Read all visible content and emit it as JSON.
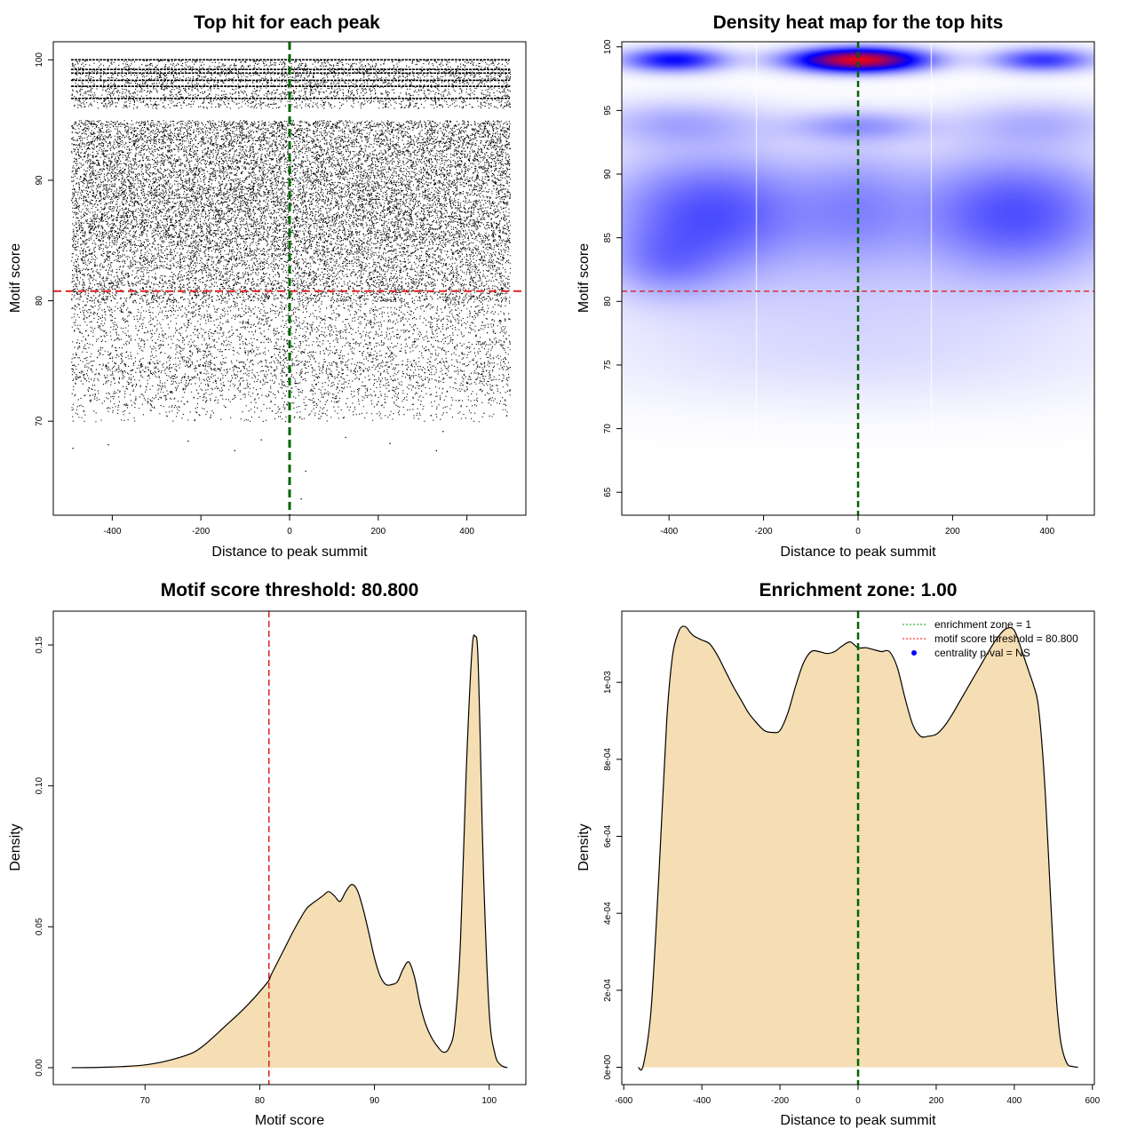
{
  "colors": {
    "green": "#006400",
    "red": "#dd2222",
    "fill": "#f5deb3",
    "heat_low": "#ffffff",
    "heat_mid": "#0000ff",
    "heat_high": "#ff0000"
  },
  "chart_data": [
    {
      "id": "scatter",
      "type": "scatter",
      "title": "Top hit for each peak",
      "xlabel": "Distance to peak summit",
      "ylabel": "Motif score",
      "xlim": [
        -533,
        533
      ],
      "ylim": [
        62.2,
        101.5
      ],
      "xticks": [
        -400,
        -200,
        0,
        200,
        400
      ],
      "yticks": [
        70,
        80,
        90,
        100
      ],
      "vline": 0,
      "hline": 80.8,
      "point_x_range": [
        -493,
        497
      ],
      "score_bands": [
        [
          96,
          100,
          10
        ],
        [
          85,
          95,
          18
        ],
        [
          80,
          85,
          14
        ],
        [
          75,
          80,
          7
        ],
        [
          70,
          75,
          2
        ]
      ],
      "horizontal_streaks": [
        100,
        99.2,
        98.9,
        98.3,
        97.8,
        96.8
      ],
      "outliers": [
        [
          -490,
          67.8
        ],
        [
          -410,
          68.1
        ],
        [
          -230,
          68.4
        ],
        [
          -125,
          67.6
        ],
        [
          -65,
          68.5
        ],
        [
          35,
          65.9
        ],
        [
          25,
          63.6
        ],
        [
          125,
          68.7
        ],
        [
          330,
          67.6
        ],
        [
          345,
          69.2
        ],
        [
          225,
          68.2
        ]
      ]
    },
    {
      "id": "heatmap",
      "type": "heatmap",
      "title": "Density heat map for the top hits",
      "xlabel": "Distance to peak summit",
      "ylabel": "Motif score",
      "xlim": [
        -500,
        500
      ],
      "ylim": [
        63.2,
        100.4
      ],
      "xticks": [
        -400,
        -200,
        0,
        200,
        400
      ],
      "yticks": [
        65,
        70,
        75,
        80,
        85,
        90,
        95,
        100
      ],
      "vline": 0,
      "hline": 80.8,
      "white_gridlines_x": [
        -215,
        155
      ],
      "components": [
        {
          "x": 0,
          "y": 99,
          "sx": 90,
          "sy": 0.6,
          "w": 1.0
        },
        {
          "x": -390,
          "y": 99,
          "sx": 70,
          "sy": 0.6,
          "w": 0.45
        },
        {
          "x": 390,
          "y": 99,
          "sx": 70,
          "sy": 0.6,
          "w": 0.35
        },
        {
          "x": 0,
          "y": 93.8,
          "sx": 100,
          "sy": 0.8,
          "w": 0.15
        },
        {
          "x": -380,
          "y": 94,
          "sx": 120,
          "sy": 1.2,
          "w": 0.12
        },
        {
          "x": 380,
          "y": 94,
          "sx": 120,
          "sy": 1.2,
          "w": 0.1
        },
        {
          "x": -310,
          "y": 87,
          "sx": 150,
          "sy": 3.2,
          "w": 0.3
        },
        {
          "x": 330,
          "y": 87,
          "sx": 150,
          "sy": 3.2,
          "w": 0.3
        },
        {
          "x": -410,
          "y": 83,
          "sx": 80,
          "sy": 1.8,
          "w": 0.12
        },
        {
          "x": 0,
          "y": 87.5,
          "sx": 90,
          "sy": 3.2,
          "w": 0.14
        },
        {
          "x": 0,
          "y": 80,
          "sx": 380,
          "sy": 3.5,
          "w": 0.05
        },
        {
          "x": 0,
          "y": 75,
          "sx": 400,
          "sy": 2.5,
          "w": 0.025
        }
      ]
    },
    {
      "id": "score_density",
      "type": "area",
      "title": "Motif score threshold: 80.800",
      "xlabel": "Motif score",
      "ylabel": "Density",
      "xlim": [
        62,
        103.2
      ],
      "ylim": [
        -0.006,
        0.162
      ],
      "xticks": [
        70,
        80,
        90,
        100
      ],
      "yticks": [
        0.0,
        0.05,
        0.1,
        0.15
      ],
      "ytick_labels": [
        "0.00",
        "0.05",
        "0.10",
        "0.15"
      ],
      "vline": 80.8,
      "x": [
        63.6,
        66,
        68,
        70,
        72,
        74,
        75,
        76,
        77,
        78,
        79,
        80,
        80.8,
        81,
        82,
        83,
        84,
        84.5,
        85,
        85.5,
        86,
        86.5,
        87,
        87.5,
        88,
        88.5,
        89,
        89.5,
        90,
        90.5,
        91,
        91.5,
        92,
        92.5,
        93,
        93.5,
        94,
        94.5,
        95,
        95.5,
        96,
        96.5,
        97,
        97.5,
        98,
        98.5,
        98.8,
        99,
        99.2,
        99.5,
        100,
        100.5,
        101,
        101.6
      ],
      "y": [
        0.0,
        0.0001,
        0.0004,
        0.001,
        0.0025,
        0.005,
        0.0075,
        0.011,
        0.0148,
        0.0185,
        0.0225,
        0.027,
        0.031,
        0.033,
        0.041,
        0.049,
        0.056,
        0.058,
        0.0595,
        0.061,
        0.0625,
        0.061,
        0.059,
        0.0625,
        0.065,
        0.063,
        0.0565,
        0.048,
        0.039,
        0.0325,
        0.0295,
        0.0295,
        0.0305,
        0.035,
        0.0375,
        0.032,
        0.022,
        0.015,
        0.0105,
        0.0075,
        0.0055,
        0.007,
        0.015,
        0.045,
        0.105,
        0.148,
        0.153,
        0.148,
        0.12,
        0.07,
        0.02,
        0.005,
        0.001,
        0.0
      ]
    },
    {
      "id": "distance_density",
      "type": "area",
      "title": "Enrichment zone: 1.00",
      "xlabel": "Distance to peak summit",
      "ylabel": "Density",
      "xlim": [
        -605,
        605
      ],
      "ylim": [
        -4.5e-05,
        0.001185
      ],
      "xticks": [
        -600,
        -400,
        -200,
        0,
        200,
        400,
        600
      ],
      "yticks": [
        0.0,
        0.0002,
        0.0004,
        0.0006,
        0.0008,
        0.001
      ],
      "ytick_labels": [
        "0e+00",
        "2e-04",
        "4e-04",
        "6e-04",
        "8e-04",
        "1e-03"
      ],
      "vline": 0,
      "x": [
        -563,
        -550,
        -530,
        -510,
        -490,
        -475,
        -460,
        -450,
        -440,
        -430,
        -420,
        -400,
        -380,
        -360,
        -340,
        -320,
        -300,
        -280,
        -260,
        -240,
        -220,
        -200,
        -180,
        -160,
        -140,
        -120,
        -100,
        -80,
        -60,
        -40,
        -20,
        0,
        20,
        40,
        60,
        80,
        100,
        120,
        140,
        160,
        180,
        200,
        220,
        240,
        260,
        280,
        300,
        320,
        340,
        360,
        380,
        400,
        420,
        440,
        450,
        460,
        470,
        480,
        490,
        500,
        510,
        520,
        535,
        550,
        563
      ],
      "y": [
        0.0,
        5e-06,
        0.00015,
        0.0005,
        0.0009,
        0.00107,
        0.00113,
        0.001145,
        0.001143,
        0.00113,
        0.00112,
        0.00111,
        0.0011,
        0.00107,
        0.00103,
        0.00099,
        0.000955,
        0.00092,
        0.000895,
        0.000875,
        0.00087,
        0.000875,
        0.00092,
        0.00099,
        0.00105,
        0.00108,
        0.00108,
        0.001075,
        0.00108,
        0.001095,
        0.001105,
        0.00109,
        0.00109,
        0.001085,
        0.00108,
        0.00108,
        0.00104,
        0.00096,
        0.00089,
        0.00086,
        0.00086,
        0.000865,
        0.000885,
        0.000915,
        0.00095,
        0.000985,
        0.00102,
        0.001055,
        0.00109,
        0.00112,
        0.00114,
        0.001135,
        0.00108,
        0.00102,
        0.00099,
        0.00095,
        0.00085,
        0.0007,
        0.0005,
        0.0003,
        0.00015,
        6e-05,
        1e-05,
        2e-06,
        0.0
      ]
    }
  ],
  "legend": {
    "items": [
      {
        "label": "enrichment zone = 1",
        "style": "green-dotted"
      },
      {
        "label": "motif score threshold = 80.800",
        "style": "red-dotted"
      },
      {
        "label": "centrality p-val = NS",
        "style": "blue-dot"
      }
    ]
  }
}
